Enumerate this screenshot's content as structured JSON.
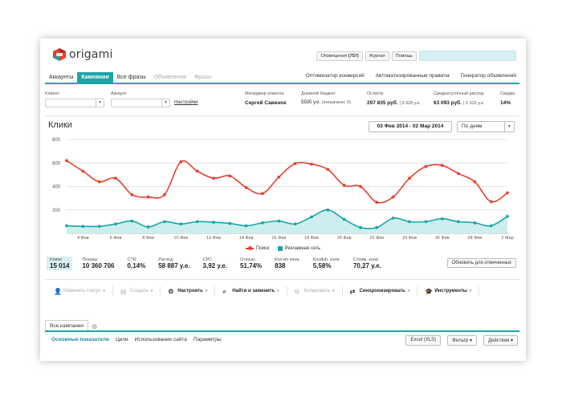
{
  "header": {
    "logo_text": "origami",
    "notifications_label": "Оповещения",
    "notifications_count": "(757)",
    "journal_label": "Журнал",
    "help_label": "Помощь"
  },
  "tabs": {
    "left": [
      "Аккаунты",
      "Кампании",
      "Все фразы",
      "Объявления",
      "Фразы"
    ],
    "right": [
      "Оптимизатор конверсий",
      "Автоматизированные правила",
      "Генератор объявлений"
    ]
  },
  "filters": {
    "client_label": "Клиент",
    "account_label": "Аккаунт",
    "settings_link": "Настройки",
    "info": [
      {
        "label": "Менеджер клиента",
        "value": "Сергей Савенок",
        "sub": ""
      },
      {
        "label": "Дневной бюджет",
        "value": "5500 у.е.",
        "sub": "(потрачено: 0)"
      },
      {
        "label": "Остаток",
        "value": "297 835 руб.",
        "sub": "| 9 928 у.е."
      },
      {
        "label": "Среднесуточный расход",
        "value": "63 093 руб.",
        "sub": "| 2 103 у.е."
      },
      {
        "label": "Скидка",
        "value": "14%",
        "sub": ""
      }
    ]
  },
  "chart_header": {
    "title": "Клики",
    "date_range": "03 Фев 2014 - 02 Мар 2014",
    "period": "По дням"
  },
  "chart_data": {
    "type": "line",
    "title": "Клики",
    "ylim": [
      0,
      800
    ],
    "yticks": [
      200,
      400,
      600,
      800
    ],
    "grid": true,
    "x_tick_labels": [
      "4 Фев",
      "6 Фев",
      "8 Фев",
      "10 Фев",
      "12 Фев",
      "14 Фев",
      "16 Фев",
      "18 Фев",
      "20 Фев",
      "22 Фев",
      "24 Фев",
      "26 Фев",
      "28 Фев",
      "2 Мар"
    ],
    "x": [
      "3 Фев",
      "4 Фев",
      "5 Фев",
      "6 Фев",
      "7 Фев",
      "8 Фев",
      "9 Фев",
      "10 Фев",
      "11 Фев",
      "12 Фев",
      "13 Фев",
      "14 Фев",
      "15 Фев",
      "16 Фев",
      "17 Фев",
      "18 Фев",
      "19 Фев",
      "20 Фев",
      "21 Фев",
      "22 Фев",
      "23 Фев",
      "24 Фев",
      "25 Фев",
      "26 Фев",
      "27 Фев",
      "28 Фев",
      "1 Мар",
      "2 Мар"
    ],
    "legend_position": "bottom",
    "series": [
      {
        "name": "Поиск",
        "color": "#e2412f",
        "style": "line",
        "values": [
          620,
          530,
          440,
          470,
          330,
          310,
          330,
          610,
          530,
          470,
          490,
          390,
          340,
          480,
          595,
          590,
          545,
          410,
          400,
          265,
          310,
          470,
          570,
          580,
          510,
          440,
          270,
          345
        ]
      },
      {
        "name": "Рекламная сеть",
        "color": "#1aa5a8",
        "style": "area",
        "values": [
          65,
          60,
          60,
          80,
          105,
          55,
          100,
          80,
          100,
          95,
          85,
          65,
          90,
          105,
          80,
          140,
          200,
          120,
          50,
          50,
          130,
          100,
          100,
          125,
          100,
          90,
          65,
          145
        ]
      }
    ]
  },
  "metrics": [
    {
      "label": "Клики",
      "value": "15 014",
      "active": true
    },
    {
      "label": "Показы",
      "value": "10 360 706",
      "active": false
    },
    {
      "label": "CTR",
      "value": "0,14%",
      "active": false
    },
    {
      "label": "Расход",
      "value": "58 887 у.е.",
      "active": false
    },
    {
      "label": "CPC",
      "value": "3,92 у.е.",
      "active": false
    },
    {
      "label": "Отказы",
      "value": "51,74%",
      "active": false
    },
    {
      "label": "Кол-во конв.",
      "value": "838",
      "active": false
    },
    {
      "label": "Коэфф. конв.",
      "value": "5,58%",
      "active": false
    },
    {
      "label": "Стоим. конв.",
      "value": "70,27 у.е.",
      "active": false
    }
  ],
  "refresh_label": "Обновить для отмеченных",
  "toolbar": [
    {
      "label": "Изменить статус",
      "icon": "person-icon",
      "enabled": false
    },
    {
      "label": "Создать",
      "icon": "document-icon",
      "enabled": false
    },
    {
      "label": "Настроить",
      "icon": "gear-icon",
      "enabled": true
    },
    {
      "label": "Найти и заменить",
      "icon": "magnifier-icon",
      "enabled": true
    },
    {
      "label": "Копировать",
      "icon": "copy-icon",
      "enabled": false
    },
    {
      "label": "Синхронизировать",
      "icon": "sync-icon",
      "enabled": true
    },
    {
      "label": "Инструменты",
      "icon": "graduation-cap-icon",
      "enabled": true
    }
  ],
  "bottom": {
    "tab_label": "Все кампании",
    "subtabs": [
      "Основные показатели",
      "Цели",
      "Использование сайта",
      "Параметры"
    ],
    "excel_label": "Excel (XLS)",
    "filter_label": "Фильтр",
    "actions_label": "Действия"
  },
  "colors": {
    "accent": "#1aa5a8",
    "search_line": "#e2412f",
    "network_fill": "#cdeeee"
  }
}
